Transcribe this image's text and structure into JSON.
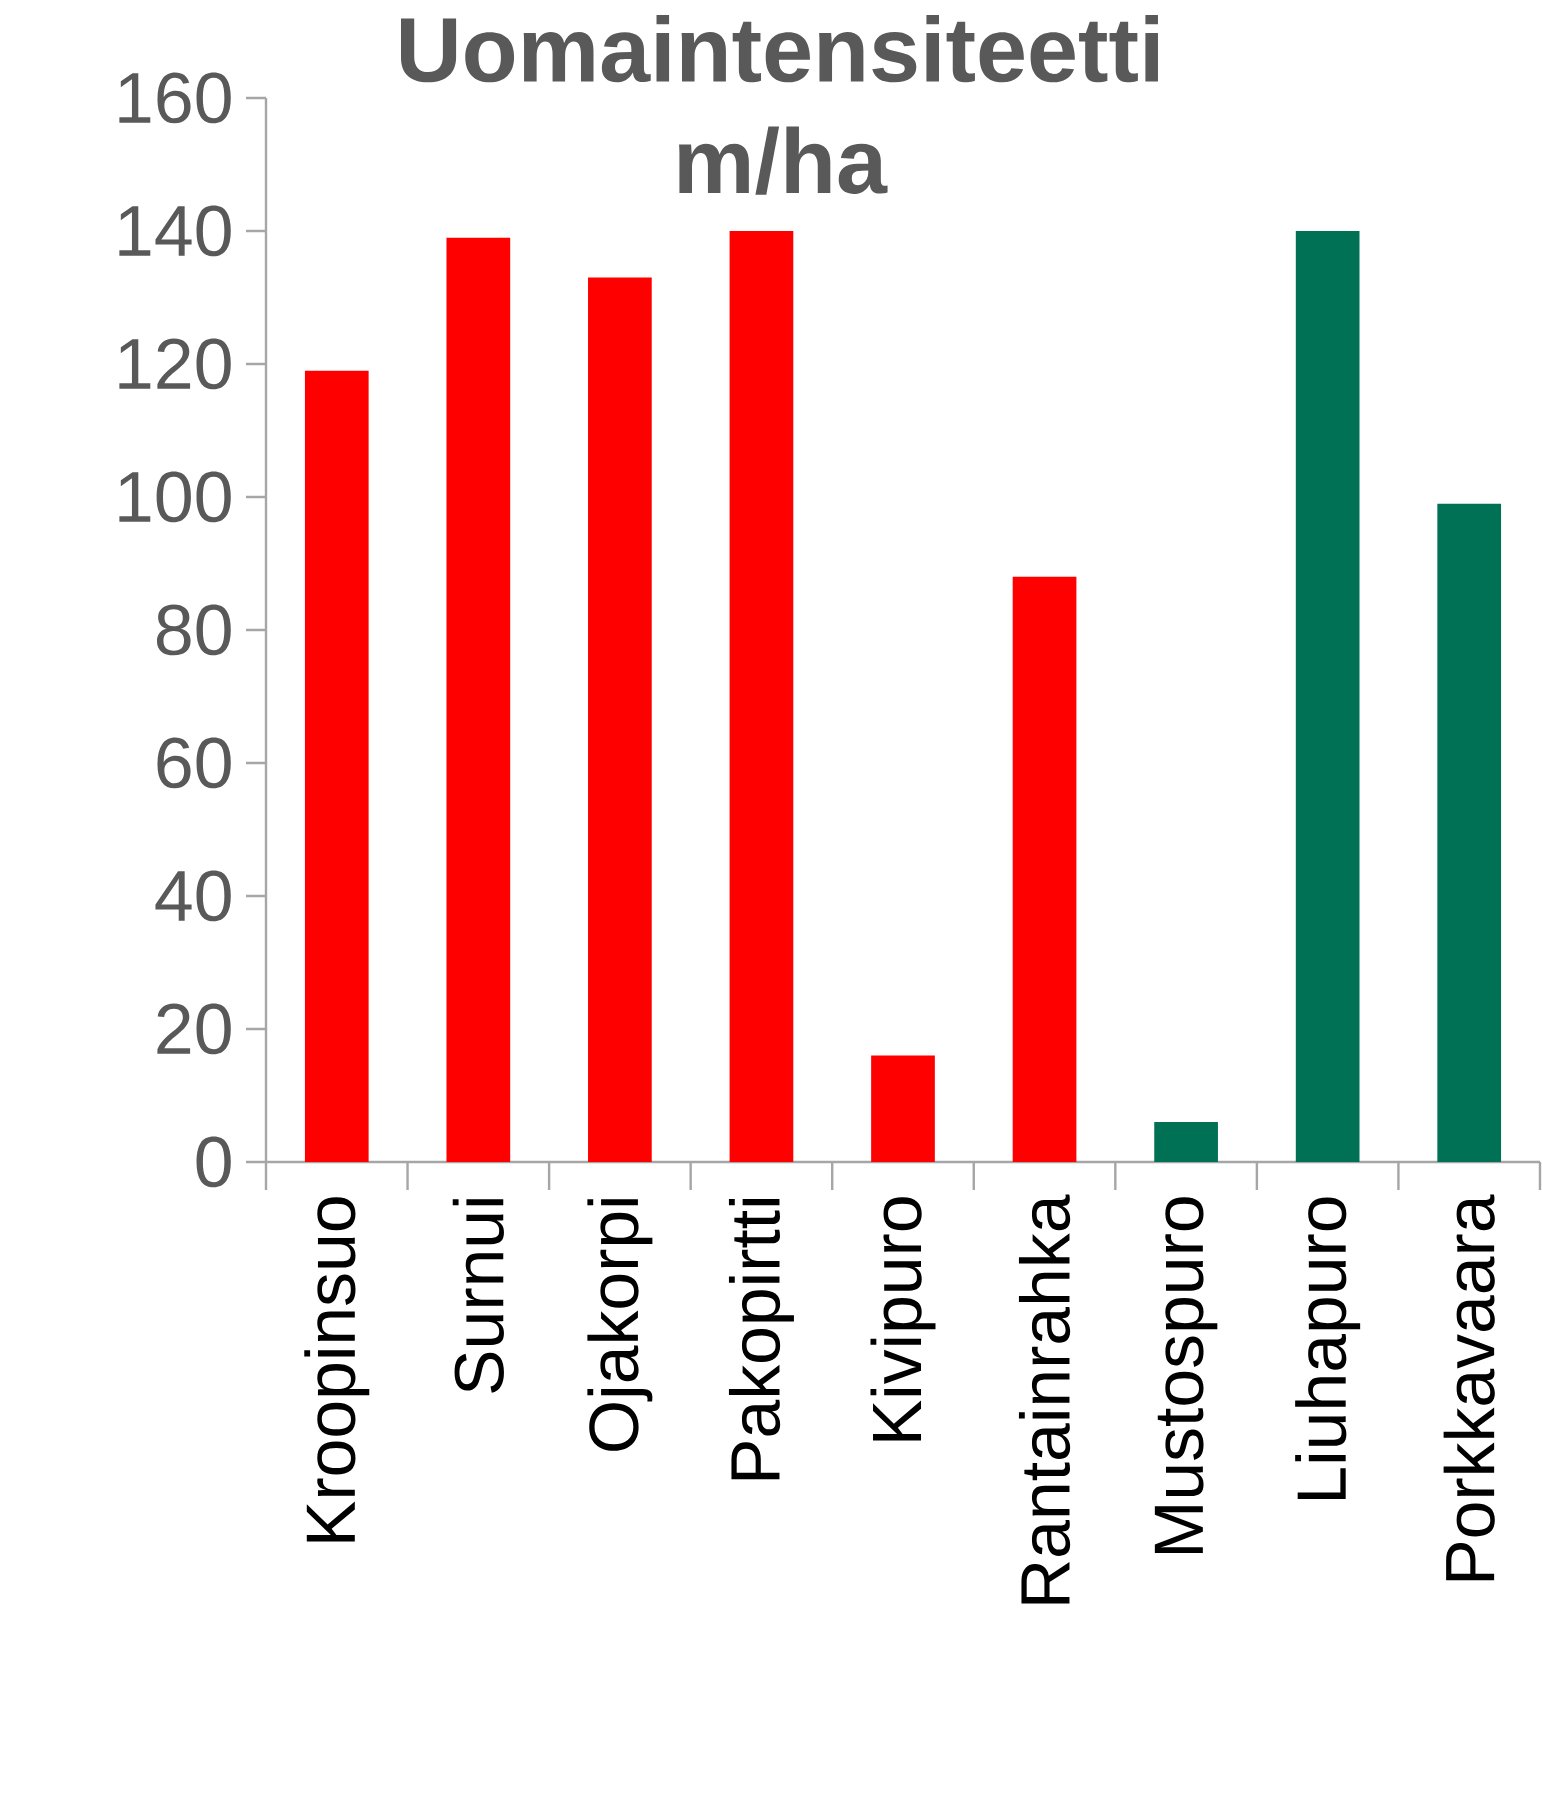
{
  "chart_data": {
    "type": "bar",
    "title": "Uomaintensiteetti m/ha",
    "categories": [
      "Kroopinsuo",
      "Surnui",
      "Ojakorpi",
      "Pakopirtti",
      "Kivipuro",
      "Rantainrahka",
      "Mustospuro",
      "Liuhapuro",
      "Porkkavaara"
    ],
    "values": [
      119,
      139,
      133,
      140,
      16,
      88,
      6,
      140,
      99
    ],
    "colors": [
      "#ff0000",
      "#ff0000",
      "#ff0000",
      "#ff0000",
      "#ff0000",
      "#ff0000",
      "#007155",
      "#007155",
      "#007155"
    ],
    "ylim": [
      0,
      160
    ],
    "yticks": [
      0,
      20,
      40,
      60,
      80,
      100,
      120,
      140,
      160
    ],
    "grid": false
  }
}
